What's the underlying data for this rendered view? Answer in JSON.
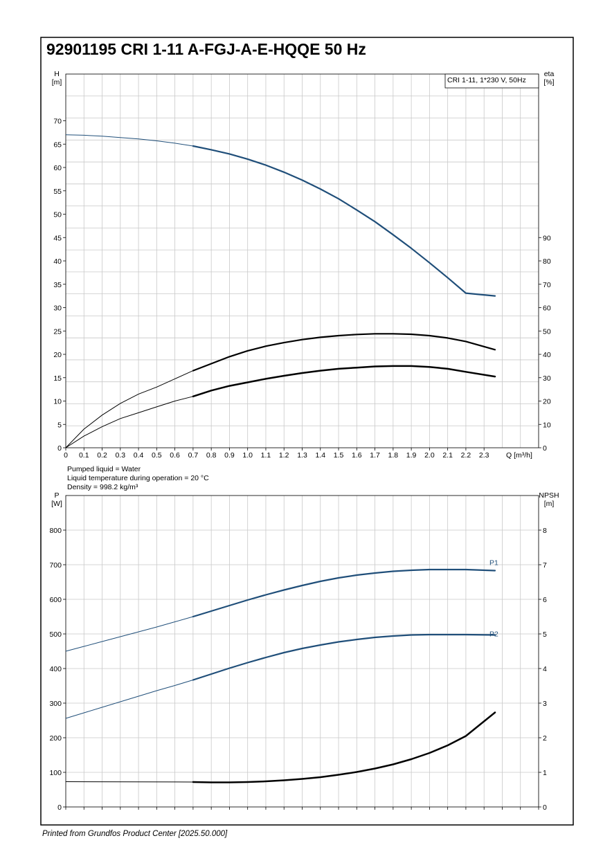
{
  "title": "92901195 CRI 1-11 A-FGJ-A-E-HQQE 50 Hz",
  "footer": "Printed from Grundfos Product Center [2025.50.000]",
  "colors": {
    "blue": "#1f4e79",
    "black": "#000000",
    "grid": "#c8c8c8"
  },
  "notes": [
    "Pumped liquid = Water",
    "Liquid temperature during operation = 20 °C",
    "Density = 998.2 kg/m³"
  ],
  "chart_data": [
    {
      "type": "line",
      "legend_box": "CRI 1-11, 1*230 V, 50Hz",
      "left_axis": {
        "name": "H",
        "unit": "[m]",
        "ticks": [
          "0",
          "5",
          "10",
          "15",
          "20",
          "25",
          "30",
          "35",
          "40",
          "45",
          "50",
          "55",
          "60",
          "65",
          "70"
        ],
        "range": [
          0,
          80
        ]
      },
      "right_axis": {
        "name": "eta",
        "unit": "[%]",
        "ticks": [
          "0",
          "10",
          "20",
          "30",
          "40",
          "50",
          "60",
          "70",
          "80",
          "90"
        ],
        "range": [
          0,
          160
        ]
      },
      "x_axis": {
        "name": "Q",
        "unit": "[m³/h]",
        "ticks": [
          "0",
          "0.1",
          "0.2",
          "0.3",
          "0.4",
          "0.5",
          "0.6",
          "0.7",
          "0.8",
          "0.9",
          "1.0",
          "1.1",
          "1.2",
          "1.3",
          "1.4",
          "1.5",
          "1.6",
          "1.7",
          "1.8",
          "1.9",
          "2.0",
          "2.1",
          "2.2",
          "2.3"
        ],
        "range": [
          0,
          2.6
        ]
      },
      "series": [
        {
          "axis": "left",
          "color": "blue",
          "thin_until": 0.7,
          "points": [
            [
              0,
              67
            ],
            [
              0.1,
              66.9
            ],
            [
              0.2,
              66.7
            ],
            [
              0.3,
              66.4
            ],
            [
              0.4,
              66.1
            ],
            [
              0.5,
              65.7
            ],
            [
              0.6,
              65.2
            ],
            [
              0.7,
              64.6
            ],
            [
              0.8,
              63.8
            ],
            [
              0.9,
              62.9
            ],
            [
              1.0,
              61.8
            ],
            [
              1.1,
              60.5
            ],
            [
              1.2,
              59.0
            ],
            [
              1.3,
              57.3
            ],
            [
              1.4,
              55.4
            ],
            [
              1.5,
              53.3
            ],
            [
              1.6,
              50.9
            ],
            [
              1.7,
              48.4
            ],
            [
              1.8,
              45.6
            ],
            [
              1.9,
              42.7
            ],
            [
              2.0,
              39.6
            ],
            [
              2.1,
              36.4
            ],
            [
              2.2,
              33.1
            ],
            [
              2.36,
              32.5
            ]
          ]
        },
        {
          "axis": "right",
          "color": "black",
          "thin_until": 0.7,
          "points": [
            [
              0,
              0
            ],
            [
              0.1,
              8
            ],
            [
              0.2,
              14
            ],
            [
              0.3,
              19
            ],
            [
              0.4,
              23
            ],
            [
              0.5,
              26
            ],
            [
              0.6,
              29.5
            ],
            [
              0.7,
              33
            ],
            [
              0.8,
              36
            ],
            [
              0.9,
              39
            ],
            [
              1.0,
              41.5
            ],
            [
              1.1,
              43.5
            ],
            [
              1.2,
              45
            ],
            [
              1.3,
              46.3
            ],
            [
              1.4,
              47.3
            ],
            [
              1.5,
              48
            ],
            [
              1.6,
              48.5
            ],
            [
              1.7,
              48.8
            ],
            [
              1.8,
              48.8
            ],
            [
              1.9,
              48.6
            ],
            [
              2.0,
              48
            ],
            [
              2.1,
              47
            ],
            [
              2.2,
              45.5
            ],
            [
              2.36,
              42
            ]
          ]
        },
        {
          "axis": "right",
          "color": "black",
          "thin_until": 0.7,
          "thick": true,
          "points": [
            [
              0,
              0
            ],
            [
              0.1,
              5
            ],
            [
              0.2,
              9
            ],
            [
              0.3,
              12.5
            ],
            [
              0.4,
              15
            ],
            [
              0.5,
              17.5
            ],
            [
              0.6,
              20
            ],
            [
              0.7,
              22
            ],
            [
              0.8,
              24.5
            ],
            [
              0.9,
              26.5
            ],
            [
              1.0,
              28
            ],
            [
              1.1,
              29.5
            ],
            [
              1.2,
              30.8
            ],
            [
              1.3,
              32
            ],
            [
              1.4,
              33
            ],
            [
              1.5,
              33.8
            ],
            [
              1.6,
              34.3
            ],
            [
              1.7,
              34.8
            ],
            [
              1.8,
              35
            ],
            [
              1.9,
              35
            ],
            [
              2.0,
              34.6
            ],
            [
              2.1,
              33.8
            ],
            [
              2.2,
              32.5
            ],
            [
              2.36,
              30.5
            ]
          ]
        }
      ]
    },
    {
      "type": "line",
      "left_axis": {
        "name": "P",
        "unit": "[W]",
        "ticks": [
          "0",
          "100",
          "200",
          "300",
          "400",
          "500",
          "600",
          "700",
          "800"
        ],
        "range": [
          0,
          900
        ]
      },
      "right_axis": {
        "name": "NPSH",
        "unit": "[m]",
        "ticks": [
          "0",
          "1",
          "2",
          "3",
          "4",
          "5",
          "6",
          "7",
          "8"
        ],
        "range": [
          0,
          9
        ]
      },
      "x_axis": {
        "range": [
          0,
          2.6
        ]
      },
      "series": [
        {
          "name": "P1",
          "axis": "left",
          "color": "blue",
          "thin_until": 0.7,
          "points": [
            [
              0,
              450
            ],
            [
              0.1,
              464
            ],
            [
              0.2,
              478
            ],
            [
              0.3,
              492
            ],
            [
              0.4,
              506
            ],
            [
              0.5,
              520
            ],
            [
              0.6,
              535
            ],
            [
              0.7,
              550
            ],
            [
              0.8,
              566
            ],
            [
              0.9,
              582
            ],
            [
              1.0,
              598
            ],
            [
              1.1,
              613
            ],
            [
              1.2,
              627
            ],
            [
              1.3,
              640
            ],
            [
              1.4,
              652
            ],
            [
              1.5,
              662
            ],
            [
              1.6,
              670
            ],
            [
              1.7,
              676
            ],
            [
              1.8,
              681
            ],
            [
              1.9,
              684
            ],
            [
              2.0,
              686
            ],
            [
              2.1,
              686
            ],
            [
              2.2,
              686
            ],
            [
              2.36,
              683
            ]
          ]
        },
        {
          "name": "P2",
          "axis": "left",
          "color": "blue",
          "thin_until": 0.7,
          "points": [
            [
              0,
              256
            ],
            [
              0.1,
              272
            ],
            [
              0.2,
              288
            ],
            [
              0.3,
              304
            ],
            [
              0.4,
              320
            ],
            [
              0.5,
              336
            ],
            [
              0.6,
              351
            ],
            [
              0.7,
              367
            ],
            [
              0.8,
              384
            ],
            [
              0.9,
              401
            ],
            [
              1.0,
              417
            ],
            [
              1.1,
              432
            ],
            [
              1.2,
              446
            ],
            [
              1.3,
              458
            ],
            [
              1.4,
              468
            ],
            [
              1.5,
              477
            ],
            [
              1.6,
              484
            ],
            [
              1.7,
              490
            ],
            [
              1.8,
              494
            ],
            [
              1.9,
              497
            ],
            [
              2.0,
              498
            ],
            [
              2.1,
              498
            ],
            [
              2.2,
              498
            ],
            [
              2.36,
              497
            ]
          ]
        },
        {
          "axis": "right",
          "color": "black",
          "thin_until": 0.7,
          "thick": true,
          "points": [
            [
              0,
              0.73
            ],
            [
              0.7,
              0.72
            ],
            [
              0.8,
              0.71
            ],
            [
              0.9,
              0.71
            ],
            [
              1.0,
              0.72
            ],
            [
              1.1,
              0.74
            ],
            [
              1.2,
              0.77
            ],
            [
              1.3,
              0.81
            ],
            [
              1.4,
              0.86
            ],
            [
              1.5,
              0.93
            ],
            [
              1.6,
              1.01
            ],
            [
              1.7,
              1.11
            ],
            [
              1.8,
              1.23
            ],
            [
              1.9,
              1.38
            ],
            [
              2.0,
              1.56
            ],
            [
              2.1,
              1.78
            ],
            [
              2.2,
              2.05
            ],
            [
              2.36,
              2.73
            ]
          ]
        }
      ]
    }
  ]
}
